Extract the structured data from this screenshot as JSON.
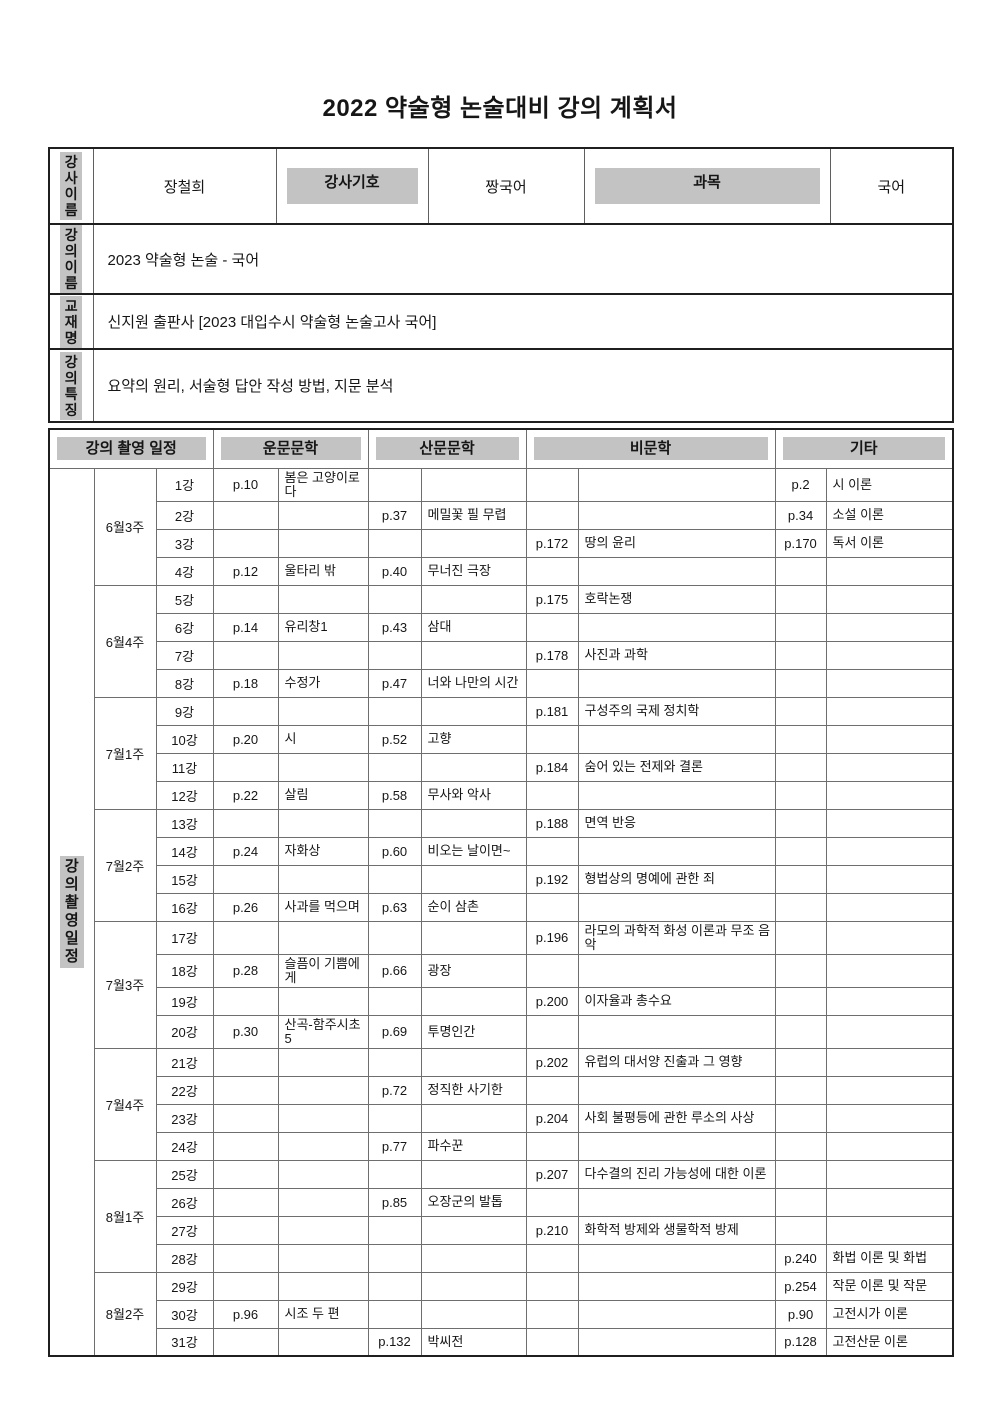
{
  "title": "2022 약술형 논술대비 강의 계획서",
  "colors": {
    "highlight": "#c3c3c3"
  },
  "info_table": {
    "row1": {
      "label": "강사이름",
      "instructor_name": "장철희",
      "code_label": "강사기호",
      "code_value": "짱국어",
      "subject_label": "과목",
      "subject_value": "국어"
    },
    "row2": {
      "label": "강의이름",
      "value": "2023 약술형 논술 - 국어"
    },
    "row3": {
      "label": "교재명",
      "value": "신지원 출판사 [2023 대입수시 약술형 논술고사 국어]"
    },
    "row4": {
      "label": "강의특징",
      "value": "요약의 원리, 서술형 답안 작성 방법, 지문 분석"
    }
  },
  "schedule": {
    "side_label": "강의촬영일정",
    "headers": {
      "schedule": "강의 촬영 일정",
      "unmun": "운문문학",
      "sanmun": "산문문학",
      "bimun": "비문학",
      "etc": "기타"
    },
    "weeks": [
      {
        "week": "6월3주",
        "lessons": [
          {
            "no": "1강",
            "up": "p.10",
            "ut": "봄은 고양이로다",
            "sp": "",
            "st": "",
            "bp": "",
            "bt": "",
            "ep": "p.2",
            "et": "시 이론"
          },
          {
            "no": "2강",
            "up": "",
            "ut": "",
            "sp": "p.37",
            "st": "메밀꽃 필 무렵",
            "bp": "",
            "bt": "",
            "ep": "p.34",
            "et": "소설 이론"
          },
          {
            "no": "3강",
            "up": "",
            "ut": "",
            "sp": "",
            "st": "",
            "bp": "p.172",
            "bt": "땅의 윤리",
            "ep": "p.170",
            "et": "독서 이론"
          },
          {
            "no": "4강",
            "up": "p.12",
            "ut": "울타리 밖",
            "sp": "p.40",
            "st": "무너진 극장",
            "bp": "",
            "bt": "",
            "ep": "",
            "et": ""
          }
        ]
      },
      {
        "week": "6월4주",
        "lessons": [
          {
            "no": "5강",
            "up": "",
            "ut": "",
            "sp": "",
            "st": "",
            "bp": "p.175",
            "bt": "호락논쟁",
            "ep": "",
            "et": ""
          },
          {
            "no": "6강",
            "up": "p.14",
            "ut": "유리창1",
            "sp": "p.43",
            "st": "삼대",
            "bp": "",
            "bt": "",
            "ep": "",
            "et": ""
          },
          {
            "no": "7강",
            "up": "",
            "ut": "",
            "sp": "",
            "st": "",
            "bp": "p.178",
            "bt": "사진과 과학",
            "ep": "",
            "et": ""
          },
          {
            "no": "8강",
            "up": "p.18",
            "ut": "수정가",
            "sp": "p.47",
            "st": "너와 나만의 시간",
            "bp": "",
            "bt": "",
            "ep": "",
            "et": ""
          }
        ]
      },
      {
        "week": "7월1주",
        "lessons": [
          {
            "no": "9강",
            "up": "",
            "ut": "",
            "sp": "",
            "st": "",
            "bp": "p.181",
            "bt": "구성주의 국제 정치학",
            "ep": "",
            "et": ""
          },
          {
            "no": "10강",
            "up": "p.20",
            "ut": "시",
            "sp": "p.52",
            "st": "고향",
            "bp": "",
            "bt": "",
            "ep": "",
            "et": ""
          },
          {
            "no": "11강",
            "up": "",
            "ut": "",
            "sp": "",
            "st": "",
            "bp": "p.184",
            "bt": "숨어 있는 전제와 결론",
            "ep": "",
            "et": ""
          },
          {
            "no": "12강",
            "up": "p.22",
            "ut": "살림",
            "sp": "p.58",
            "st": "무사와 악사",
            "bp": "",
            "bt": "",
            "ep": "",
            "et": ""
          }
        ]
      },
      {
        "week": "7월2주",
        "lessons": [
          {
            "no": "13강",
            "up": "",
            "ut": "",
            "sp": "",
            "st": "",
            "bp": "p.188",
            "bt": "면역 반응",
            "ep": "",
            "et": ""
          },
          {
            "no": "14강",
            "up": "p.24",
            "ut": "자화상",
            "sp": "p.60",
            "st": "비오는 날이면~",
            "bp": "",
            "bt": "",
            "ep": "",
            "et": ""
          },
          {
            "no": "15강",
            "up": "",
            "ut": "",
            "sp": "",
            "st": "",
            "bp": "p.192",
            "bt": "형법상의 명예에 관한 죄",
            "ep": "",
            "et": ""
          },
          {
            "no": "16강",
            "up": "p.26",
            "ut": "사과를 먹으며",
            "sp": "p.63",
            "st": "순이 삼촌",
            "bp": "",
            "bt": "",
            "ep": "",
            "et": ""
          }
        ]
      },
      {
        "week": "7월3주",
        "lessons": [
          {
            "no": "17강",
            "up": "",
            "ut": "",
            "sp": "",
            "st": "",
            "bp": "p.196",
            "bt": "라모의 과학적 화성 이론과 무조 음악",
            "ep": "",
            "et": ""
          },
          {
            "no": "18강",
            "up": "p.28",
            "ut": "슬픔이 기쁨에게",
            "sp": "p.66",
            "st": "광장",
            "bp": "",
            "bt": "",
            "ep": "",
            "et": ""
          },
          {
            "no": "19강",
            "up": "",
            "ut": "",
            "sp": "",
            "st": "",
            "bp": "p.200",
            "bt": "이자율과 총수요",
            "ep": "",
            "et": ""
          },
          {
            "no": "20강",
            "up": "p.30",
            "ut": "산곡-함주시초5",
            "sp": "p.69",
            "st": "투명인간",
            "bp": "",
            "bt": "",
            "ep": "",
            "et": ""
          }
        ]
      },
      {
        "week": "7월4주",
        "lessons": [
          {
            "no": "21강",
            "up": "",
            "ut": "",
            "sp": "",
            "st": "",
            "bp": "p.202",
            "bt": "유럽의 대서양 진출과 그 영향",
            "ep": "",
            "et": ""
          },
          {
            "no": "22강",
            "up": "",
            "ut": "",
            "sp": "p.72",
            "st": "정직한 사기한",
            "bp": "",
            "bt": "",
            "ep": "",
            "et": ""
          },
          {
            "no": "23강",
            "up": "",
            "ut": "",
            "sp": "",
            "st": "",
            "bp": "p.204",
            "bt": "사회 불평등에 관한 루소의 사상",
            "ep": "",
            "et": ""
          },
          {
            "no": "24강",
            "up": "",
            "ut": "",
            "sp": "p.77",
            "st": "파수꾼",
            "bp": "",
            "bt": "",
            "ep": "",
            "et": ""
          }
        ]
      },
      {
        "week": "8월1주",
        "lessons": [
          {
            "no": "25강",
            "up": "",
            "ut": "",
            "sp": "",
            "st": "",
            "bp": "p.207",
            "bt": "다수결의 진리 가능성에 대한 이론",
            "ep": "",
            "et": ""
          },
          {
            "no": "26강",
            "up": "",
            "ut": "",
            "sp": "p.85",
            "st": "오장군의 발톱",
            "bp": "",
            "bt": "",
            "ep": "",
            "et": ""
          },
          {
            "no": "27강",
            "up": "",
            "ut": "",
            "sp": "",
            "st": "",
            "bp": "p.210",
            "bt": "화학적 방제와 생물학적 방제",
            "ep": "",
            "et": ""
          },
          {
            "no": "28강",
            "up": "",
            "ut": "",
            "sp": "",
            "st": "",
            "bp": "",
            "bt": "",
            "ep": "p.240",
            "et": "화법 이론 및 화법"
          }
        ]
      },
      {
        "week": "8월2주",
        "lessons": [
          {
            "no": "29강",
            "up": "",
            "ut": "",
            "sp": "",
            "st": "",
            "bp": "",
            "bt": "",
            "ep": "p.254",
            "et": "작문 이론 및 작문"
          },
          {
            "no": "30강",
            "up": "p.96",
            "ut": "시조 두 편",
            "sp": "",
            "st": "",
            "bp": "",
            "bt": "",
            "ep": "p.90",
            "et": "고전시가 이론"
          },
          {
            "no": "31강",
            "up": "",
            "ut": "",
            "sp": "p.132",
            "st": "박씨전",
            "bp": "",
            "bt": "",
            "ep": "p.128",
            "et": "고전산문 이론"
          }
        ]
      }
    ]
  }
}
